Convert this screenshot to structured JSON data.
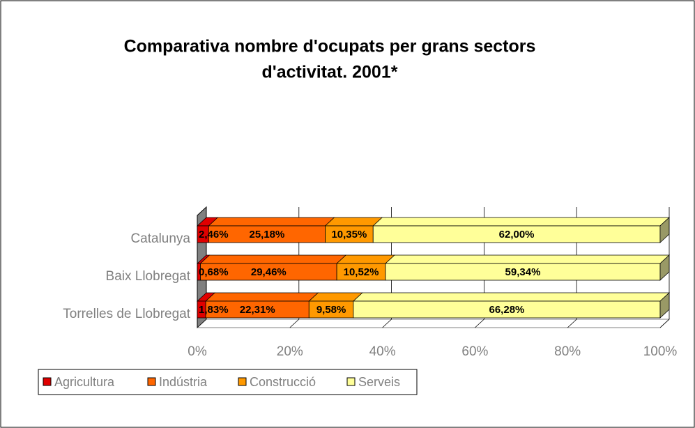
{
  "chart_data": {
    "type": "bar3d_stacked_horizontal",
    "title": [
      "Comparativa nombre d'ocupats per grans sectors",
      "d'activitat. 2001*"
    ],
    "categories": [
      "Catalunya",
      "Baix Llobregat",
      "Torrelles de Llobregat"
    ],
    "series": [
      {
        "name": "Agricultura",
        "color": "#e00000",
        "values": [
          2.46,
          0.68,
          1.83
        ],
        "value_labels": [
          "2,46%",
          "0,68%",
          "1,83%"
        ]
      },
      {
        "name": "Indústria",
        "color": "#ff6600",
        "values": [
          25.18,
          29.46,
          22.31
        ],
        "value_labels": [
          "25,18%",
          "29,46%",
          "22,31%"
        ]
      },
      {
        "name": "Construcció",
        "color": "#ff9900",
        "values": [
          10.35,
          10.52,
          9.58
        ],
        "value_labels": [
          "10,35%",
          "10,52%",
          "9,58%"
        ]
      },
      {
        "name": "Serveis",
        "color": "#ffff99",
        "values": [
          62.0,
          59.34,
          66.28
        ],
        "value_labels": [
          "62,00%",
          "59,34%",
          "66,28%"
        ]
      }
    ],
    "xlim": [
      0,
      100
    ],
    "xticks": [
      {
        "value": 0,
        "label": "0%"
      },
      {
        "value": 20,
        "label": "20%"
      },
      {
        "value": 40,
        "label": "40%"
      },
      {
        "value": 60,
        "label": "60%"
      },
      {
        "value": 80,
        "label": "80%"
      },
      {
        "value": 100,
        "label": "100%"
      }
    ],
    "grid": true,
    "legend": "bottom-left"
  }
}
